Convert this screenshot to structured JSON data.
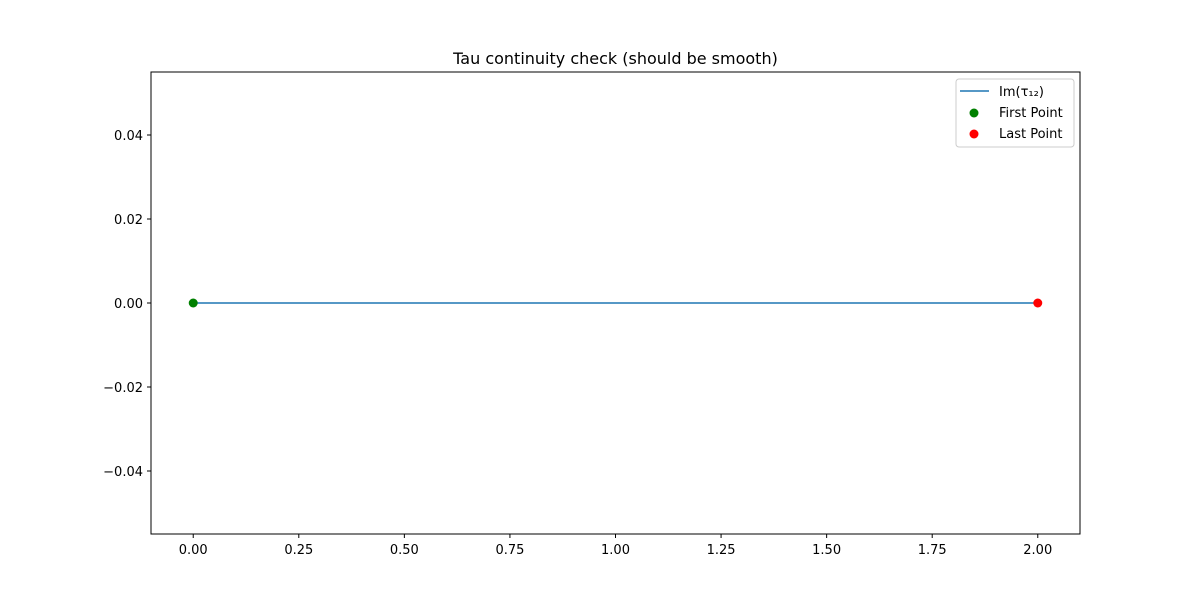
{
  "chart_data": {
    "type": "line",
    "title": "Tau continuity check (should be smooth)",
    "xlabel": "",
    "ylabel": "",
    "xlim": [
      -0.1,
      2.1
    ],
    "ylim": [
      -0.055,
      0.055
    ],
    "x_ticks": [
      0.0,
      0.25,
      0.5,
      0.75,
      1.0,
      1.25,
      1.5,
      1.75,
      2.0
    ],
    "x_tick_labels": [
      "0.00",
      "0.25",
      "0.50",
      "0.75",
      "1.00",
      "1.25",
      "1.50",
      "1.75",
      "2.00"
    ],
    "y_ticks": [
      0.04,
      0.02,
      0.0,
      -0.02,
      -0.04
    ],
    "y_tick_labels": [
      "0.04",
      "0.02",
      "0.00",
      "−0.02",
      "−0.04"
    ],
    "grid": false,
    "legend_position": "top-right",
    "series": [
      {
        "name": "Im(τ₁₂)",
        "kind": "line",
        "color": "#1f77b4",
        "x": [
          0.0,
          2.0
        ],
        "y": [
          0.0,
          0.0
        ]
      },
      {
        "name": "First Point",
        "kind": "scatter",
        "color": "#008000",
        "x": [
          0.0
        ],
        "y": [
          0.0
        ]
      },
      {
        "name": "Last Point",
        "kind": "scatter",
        "color": "#ff0000",
        "x": [
          2.0
        ],
        "y": [
          0.0
        ]
      }
    ]
  }
}
